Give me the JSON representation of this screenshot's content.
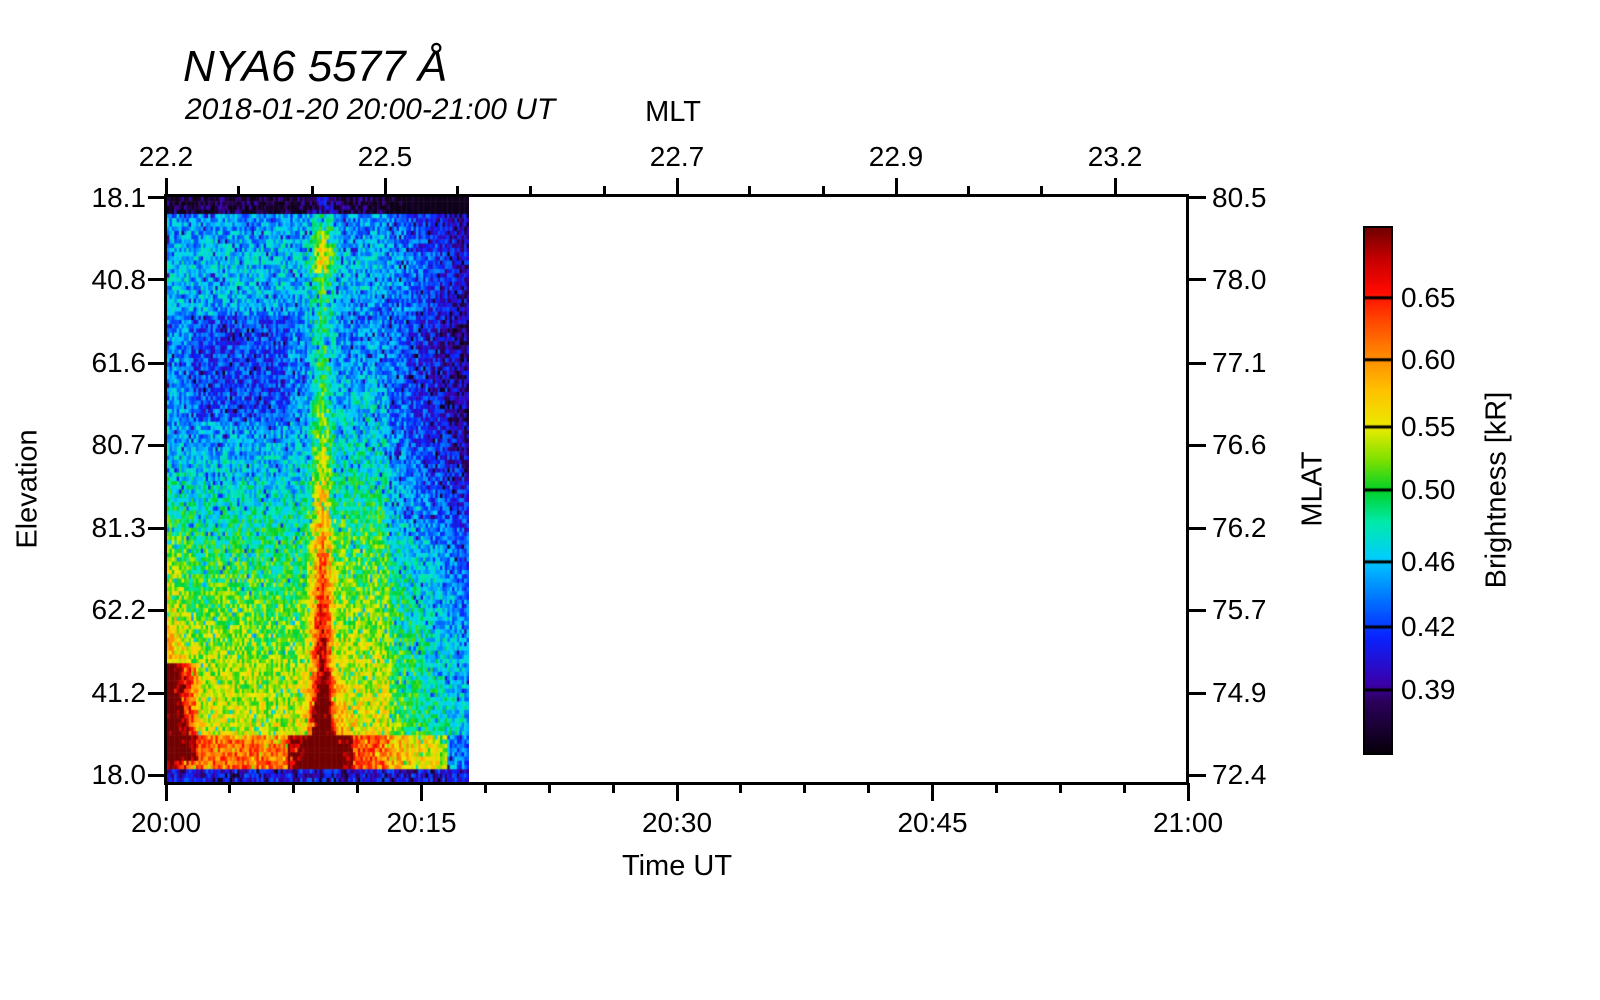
{
  "chart_data": {
    "type": "heatmap",
    "title": "NYA6 5577 Å",
    "subtitle": "2018-01-20 20:00-21:00 UT",
    "axes": {
      "top": {
        "title": "MLT",
        "major_ticks": [
          {
            "f": 0.0,
            "label": "22.2"
          },
          {
            "f": 0.2143,
            "label": "22.5"
          },
          {
            "f": 0.5,
            "label": "22.7"
          },
          {
            "f": 0.7143,
            "label": "22.9"
          },
          {
            "f": 0.9286,
            "label": "23.2"
          }
        ],
        "minor_f": [
          0.0714,
          0.1429,
          0.2857,
          0.3571,
          0.4286,
          0.5714,
          0.6429,
          0.7857,
          0.8571
        ]
      },
      "bottom": {
        "title": "Time UT",
        "major_ticks": [
          {
            "f": 0.0,
            "label": "20:00"
          },
          {
            "f": 0.25,
            "label": "20:15"
          },
          {
            "f": 0.5,
            "label": "20:30"
          },
          {
            "f": 0.75,
            "label": "20:45"
          },
          {
            "f": 1.0,
            "label": "21:00"
          }
        ],
        "minor_f": [
          0.0625,
          0.125,
          0.1875,
          0.3125,
          0.375,
          0.4375,
          0.5625,
          0.625,
          0.6875,
          0.8125,
          0.875,
          0.9375
        ]
      },
      "left": {
        "title": "Elevation",
        "ticks": [
          {
            "f": 0.0034,
            "label": "18.1"
          },
          {
            "f": 0.1431,
            "label": "40.8"
          },
          {
            "f": 0.2845,
            "label": "61.6"
          },
          {
            "f": 0.4242,
            "label": "80.7"
          },
          {
            "f": 0.5656,
            "label": "81.3"
          },
          {
            "f": 0.7053,
            "label": "62.2"
          },
          {
            "f": 0.8467,
            "label": "41.2"
          },
          {
            "f": 0.9864,
            "label": "18.0"
          }
        ]
      },
      "right": {
        "title": "MLAT",
        "ticks": [
          {
            "f": 0.0034,
            "label": "80.5"
          },
          {
            "f": 0.1431,
            "label": "78.0"
          },
          {
            "f": 0.2845,
            "label": "77.1"
          },
          {
            "f": 0.4242,
            "label": "76.6"
          },
          {
            "f": 0.5656,
            "label": "76.2"
          },
          {
            "f": 0.7053,
            "label": "75.7"
          },
          {
            "f": 0.8467,
            "label": "74.9"
          },
          {
            "f": 0.9864,
            "label": "72.4"
          }
        ]
      }
    },
    "colorbar": {
      "title": "Brightness [kR]",
      "ticks": [
        {
          "f": 0.133,
          "label": "0.65"
        },
        {
          "f": 0.251,
          "label": "0.60"
        },
        {
          "f": 0.379,
          "label": "0.55"
        },
        {
          "f": 0.499,
          "label": "0.50"
        },
        {
          "f": 0.636,
          "label": "0.46"
        },
        {
          "f": 0.76,
          "label": "0.42"
        },
        {
          "f": 0.88,
          "label": "0.39"
        }
      ]
    },
    "colormap_stops": [
      [
        0.0,
        8,
        0,
        12
      ],
      [
        0.1,
        45,
        0,
        95
      ],
      [
        0.13,
        60,
        0,
        170
      ],
      [
        0.22,
        10,
        35,
        255
      ],
      [
        0.3,
        0,
        125,
        255
      ],
      [
        0.37,
        0,
        205,
        255
      ],
      [
        0.44,
        0,
        235,
        170
      ],
      [
        0.5,
        0,
        210,
        40
      ],
      [
        0.56,
        130,
        225,
        0
      ],
      [
        0.62,
        235,
        235,
        0
      ],
      [
        0.69,
        255,
        195,
        0
      ],
      [
        0.76,
        255,
        135,
        0
      ],
      [
        0.83,
        255,
        65,
        0
      ],
      [
        0.88,
        255,
        10,
        0
      ],
      [
        0.94,
        200,
        0,
        0
      ],
      [
        1.0,
        115,
        0,
        0
      ]
    ],
    "data_extent": {
      "time_start": "20:00",
      "data_end_frac": 0.2955,
      "note": "Colored scan data fills 20:00 to about 20:18; remainder of hour is blank (no data)."
    },
    "features": [
      "narrow black band across the top few scan rows",
      "bright green-yellow horizontal band near top (elevation ~30-45)",
      "darker blue-violet patch upper-left-of-center (elevation ~55-75, 20:02-20:06)",
      "bright vertical auroral stripe near 20:09-20:10, green at top turning yellow-orange-red toward bottom",
      "yellow-orange-red column along left edge below zenith with solid red blob near 20:00-20:02 at low elevation",
      "red-orange band along bottom rows, intense red around the stripe base",
      "right portion of data fades to dark blue/black speckle",
      "dark speckled bottom edge row"
    ],
    "heatmap": {
      "cols": 125,
      "rows": 138,
      "seed": 1234567,
      "top_black_v": 0.028,
      "base_profile": [
        [
          0.0,
          0.3
        ],
        [
          0.05,
          0.33
        ],
        [
          0.1,
          0.37
        ],
        [
          0.15,
          0.36
        ],
        [
          0.22,
          0.315
        ],
        [
          0.33,
          0.315
        ],
        [
          0.45,
          0.36
        ],
        [
          0.6,
          0.455
        ],
        [
          0.75,
          0.52
        ],
        [
          0.9,
          0.565
        ],
        [
          1.0,
          0.575
        ]
      ],
      "dark_patch": {
        "t0": 0.08,
        "t1": 0.4,
        "v0": 0.2,
        "v1": 0.38,
        "amp": 0.07
      },
      "right_fade": {
        "t0": 0.7,
        "amp": 0.2
      },
      "left_tilt": {
        "v0": 0.4,
        "amp": 0.08
      },
      "left_column": {
        "t1": 0.09,
        "v0": 0.42,
        "amp": 0.2
      },
      "left_blob": {
        "t1": 0.105,
        "v0": 0.8,
        "v1": 0.965,
        "amp": 0.38
      },
      "stripe": {
        "tc": 0.515,
        "sigma": 0.038,
        "amp0": 0.1,
        "amp1": 0.42,
        "pow": 1.4,
        "top_v0": 0.05,
        "top_v1": 0.13,
        "top_amp": 0.15
      },
      "stripe_widen": {
        "tc": 0.52,
        "sigma": 0.065,
        "v0": 0.8,
        "amp": 0.22
      },
      "right_green": {
        "t0": 0.58,
        "t1": 0.74,
        "v0": 0.3,
        "amp": 0.05
      },
      "bottom_band": {
        "v0": 0.925,
        "v1": 0.985,
        "amp": 0.16,
        "hot_t0": 0.4,
        "hot_t1": 0.62,
        "hot_amp": 0.18,
        "right_cut_t": 0.93,
        "right_cut_amp": 0.25
      },
      "bottom_edge": {
        "v0": 0.985,
        "level": 0.18
      },
      "noise": {
        "amp": 0.1,
        "dark_prob": 0.1,
        "dark_amp": 0.14
      }
    }
  }
}
